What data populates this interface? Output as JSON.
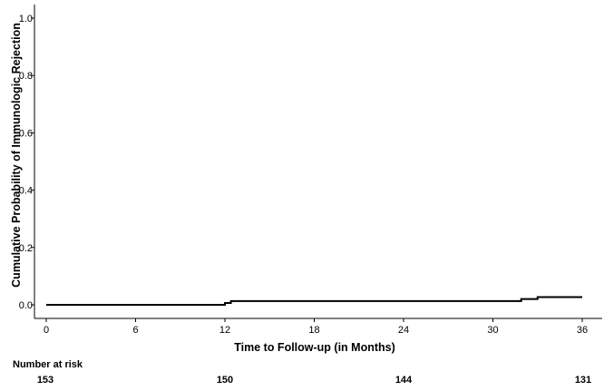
{
  "chart_data": {
    "type": "line",
    "title": "",
    "xlabel": "Time to Follow-up (in Months)",
    "ylabel": "Cumulative Probability of Immunologic Rejection",
    "xlim": [
      0,
      36
    ],
    "ylim": [
      0,
      1.0
    ],
    "x_ticks": [
      0,
      6,
      12,
      18,
      24,
      30,
      36
    ],
    "y_ticks": [
      0.0,
      0.2,
      0.4,
      0.6,
      0.8,
      1.0
    ],
    "y_tick_labels": [
      "0.0",
      "0.2",
      "0.4",
      "0.6",
      "0.8",
      "1.0"
    ],
    "grid": false,
    "series": [
      {
        "step": true,
        "x": [
          0,
          12.0,
          12.4,
          31.9,
          33.0,
          36.0
        ],
        "y": [
          0.0,
          0.0065,
          0.0132,
          0.02,
          0.0267,
          0.0267
        ]
      }
    ],
    "line_color": "#000000",
    "risk_table": {
      "title": "Number at risk",
      "times": [
        0,
        12,
        24,
        36
      ],
      "values": [
        "153",
        "150",
        "144",
        "131"
      ]
    }
  }
}
